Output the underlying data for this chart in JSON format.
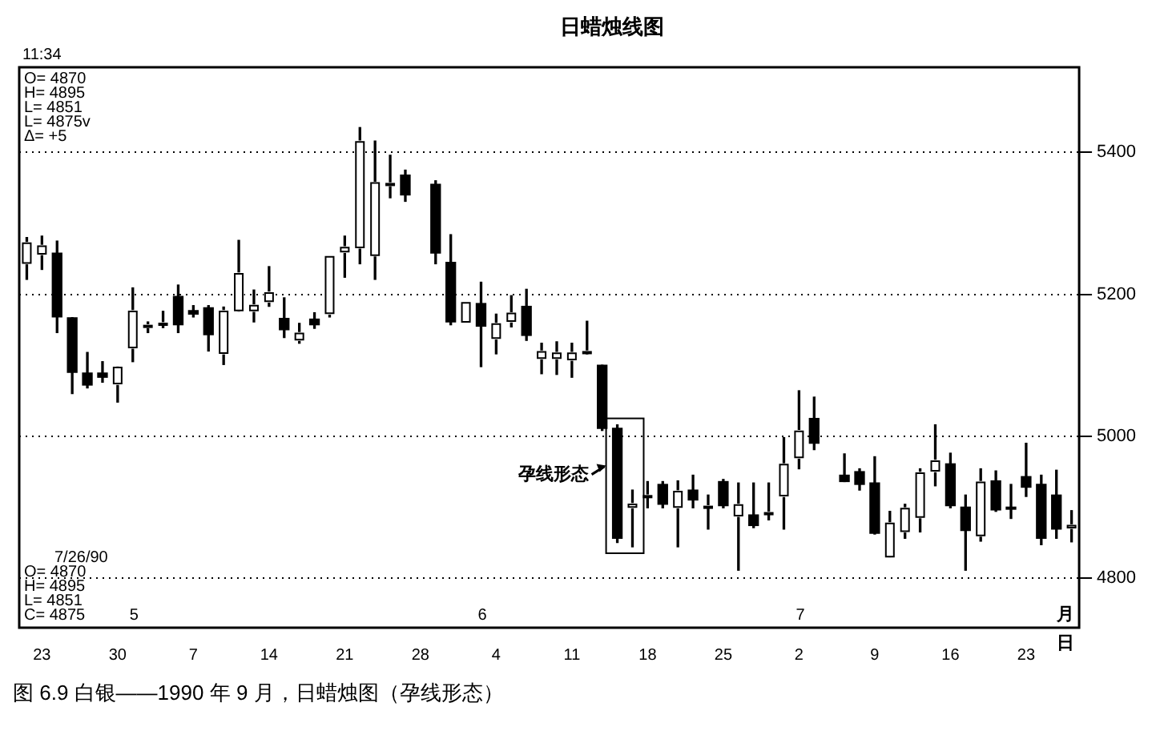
{
  "chart_data": {
    "type": "candlestick",
    "title": "日蜡烛线图",
    "categories": [
      null,
      "23",
      null,
      null,
      null,
      null,
      "30",
      null,
      null,
      null,
      null,
      "7",
      null,
      null,
      null,
      null,
      "14",
      null,
      null,
      null,
      null,
      "21",
      null,
      null,
      null,
      null,
      "28",
      null,
      null,
      null,
      null,
      "4",
      null,
      null,
      null,
      null,
      "11",
      null,
      null,
      null,
      null,
      "18",
      null,
      null,
      null,
      null,
      "25",
      null,
      null,
      null,
      null,
      "2",
      null,
      null,
      null,
      null,
      "9",
      null,
      null,
      null,
      null,
      "16",
      null,
      null,
      null,
      null,
      "23",
      null,
      null,
      null
    ],
    "ohlc": [
      [
        5243,
        5280,
        5221,
        5273
      ],
      [
        5256,
        5282,
        5235,
        5269
      ],
      [
        5258,
        5275,
        5146,
        5168
      ],
      [
        5167,
        5167,
        5060,
        5090
      ],
      [
        5089,
        5118,
        5068,
        5072
      ],
      [
        5089,
        5105,
        5076,
        5083
      ],
      [
        5073,
        5098,
        5048,
        5098
      ],
      [
        5124,
        5209,
        5105,
        5177
      ],
      [
        5153,
        5161,
        5146,
        5157
      ],
      [
        5158,
        5176,
        5153,
        5160
      ],
      [
        5197,
        5213,
        5146,
        5157
      ],
      [
        5177,
        5184,
        5168,
        5172
      ],
      [
        5181,
        5184,
        5120,
        5143
      ],
      [
        5116,
        5182,
        5101,
        5177
      ],
      [
        5176,
        5276,
        5176,
        5230
      ],
      [
        5176,
        5206,
        5161,
        5185
      ],
      [
        5189,
        5239,
        5183,
        5203
      ],
      [
        5166,
        5195,
        5139,
        5150
      ],
      [
        5135,
        5159,
        5131,
        5146
      ],
      [
        5165,
        5174,
        5152,
        5157
      ],
      [
        5172,
        5254,
        5168,
        5254
      ],
      [
        5259,
        5282,
        5224,
        5267
      ],
      [
        5265,
        5435,
        5243,
        5416
      ],
      [
        5254,
        5416,
        5221,
        5358
      ],
      [
        5353,
        5396,
        5336,
        5357
      ],
      [
        5368,
        5375,
        5331,
        5340
      ],
      null,
      [
        5355,
        5360,
        5243,
        5258
      ],
      [
        5245,
        5284,
        5157,
        5161
      ],
      [
        5160,
        5189,
        5160,
        5189
      ],
      [
        5187,
        5217,
        5098,
        5155
      ],
      [
        5137,
        5172,
        5116,
        5159
      ],
      [
        5161,
        5198,
        5154,
        5174
      ],
      [
        5183,
        5207,
        5135,
        5142
      ],
      [
        5109,
        5131,
        5088,
        5120
      ],
      [
        5109,
        5133,
        5087,
        5118
      ],
      [
        5107,
        5131,
        5083,
        5118
      ],
      [
        5117,
        5162,
        5116,
        5120
      ],
      [
        5100,
        5100,
        5008,
        5011
      ],
      [
        5011,
        5016,
        4850,
        4856
      ],
      [
        4899,
        4924,
        4844,
        4905
      ],
      [
        4915,
        4936,
        4899,
        4917
      ],
      [
        4932,
        4936,
        4899,
        4904
      ],
      [
        4899,
        4937,
        4844,
        4923
      ],
      [
        4924,
        4945,
        4899,
        4910
      ],
      [
        4900,
        4917,
        4869,
        4902
      ],
      [
        4936,
        4939,
        4899,
        4902
      ],
      [
        4887,
        4934,
        4811,
        4904
      ],
      [
        4889,
        4934,
        4871,
        4874
      ],
      [
        4891,
        4934,
        4882,
        4893
      ],
      [
        4915,
        4998,
        4869,
        4961
      ],
      [
        4969,
        5064,
        4954,
        5008
      ],
      [
        5025,
        5055,
        4981,
        4990
      ],
      null,
      [
        4945,
        4975,
        4936,
        4936
      ],
      [
        4950,
        4954,
        4924,
        4932
      ],
      [
        4934,
        4971,
        4862,
        4863
      ],
      [
        4829,
        4894,
        4829,
        4878
      ],
      [
        4865,
        4904,
        4856,
        4899
      ],
      [
        4885,
        4954,
        4865,
        4949
      ],
      [
        4950,
        5016,
        4930,
        4966
      ],
      [
        4961,
        4976,
        4899,
        4902
      ],
      [
        4900,
        4917,
        4811,
        4867
      ],
      [
        4859,
        4954,
        4852,
        4936
      ],
      [
        4937,
        4951,
        4894,
        4896
      ],
      [
        4900,
        4932,
        4884,
        4897
      ],
      [
        4943,
        4990,
        4915,
        4928
      ],
      [
        4932,
        4945,
        4847,
        4856
      ],
      [
        4917,
        4952,
        4856,
        4869
      ],
      [
        4870,
        4895,
        4851,
        4875
      ]
    ],
    "color": "#000000",
    "colors": [
      "#ffffff",
      "#ffffff",
      "#000000",
      "#000000",
      "#000000",
      "#000000",
      "#ffffff",
      "#ffffff",
      "#ffffff",
      "#ffffff",
      "#000000",
      "#000000",
      "#000000",
      "#ffffff",
      "#ffffff",
      "#ffffff",
      "#ffffff",
      "#000000",
      "#ffffff",
      "#000000",
      "#ffffff",
      "#ffffff",
      "#ffffff",
      "#ffffff",
      "#ffffff",
      "#000000",
      null,
      "#000000",
      "#000000",
      "#ffffff",
      "#000000",
      "#ffffff",
      "#ffffff",
      "#000000",
      "#ffffff",
      "#ffffff",
      "#ffffff",
      "#ffffff",
      "#000000",
      "#000000",
      "#ffffff",
      "#ffffff",
      "#000000",
      "#ffffff",
      "#000000",
      "#ffffff",
      "#000000",
      "#ffffff",
      "#000000",
      "#ffffff",
      "#ffffff",
      "#ffffff",
      "#000000",
      null,
      "#000000",
      "#000000",
      "#000000",
      "#ffffff",
      "#ffffff",
      "#ffffff",
      "#ffffff",
      "#000000",
      "#000000",
      "#ffffff",
      "#000000",
      "#000000",
      "#000000",
      "#000000",
      "#000000",
      "#ffffff"
    ],
    "ylim": [
      4730,
      5520
    ],
    "yticks": [
      4800,
      5000,
      5200,
      5400
    ],
    "grid": "y",
    "annotations": [
      "11:34",
      "O= 4870",
      "H= 4895",
      "L= 4851",
      "L= 4875v",
      "Δ= +5",
      "7/26/90",
      "O= 4870",
      "H= 4895",
      "L= 4851",
      "C= 4875",
      "孕线形态",
      "5",
      "6",
      "7",
      "月",
      "日",
      "图 6.9  白银——1990 年 9 月，日蜡烛图（孕线形态）"
    ]
  }
}
